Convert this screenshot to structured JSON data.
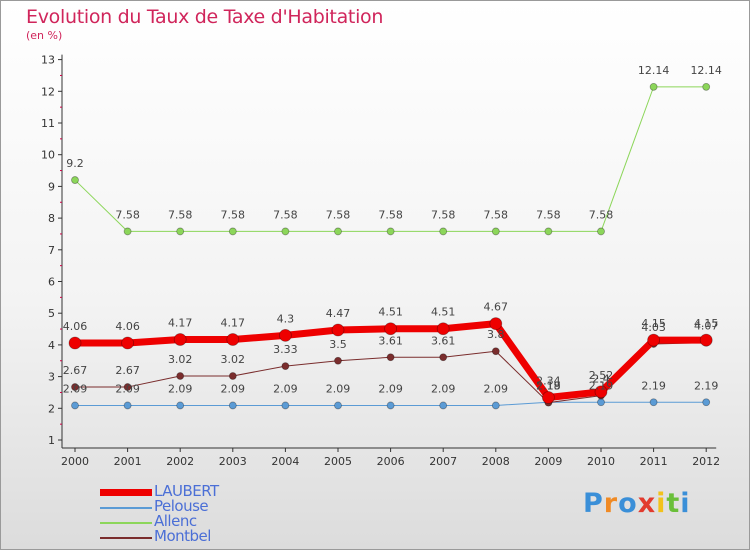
{
  "chart_data": {
    "type": "line",
    "title": "Evolution du Taux de Taxe d'Habitation",
    "ylabel": "(en %)",
    "x": [
      "2000",
      "2001",
      "2002",
      "2003",
      "2004",
      "2005",
      "2006",
      "2007",
      "2008",
      "2009",
      "2010",
      "2011",
      "2012"
    ],
    "ylim": [
      1,
      13
    ],
    "yticks": [
      1,
      2,
      3,
      4,
      5,
      6,
      7,
      8,
      9,
      10,
      11,
      12,
      13
    ],
    "grid": false,
    "legend_position": "bottom-left",
    "series": [
      {
        "name": "LAUBERT",
        "color": "#ee0000",
        "width": 7,
        "values": [
          4.06,
          4.06,
          4.17,
          4.17,
          4.3,
          4.47,
          4.51,
          4.51,
          4.67,
          2.34,
          2.52,
          4.15,
          4.15
        ],
        "labels": [
          "4.06",
          "4.06",
          "4.17",
          "4.17",
          "4.3",
          "4.47",
          "4.51",
          "4.51",
          "4.67",
          "2.34",
          "2.52",
          "4.15",
          "4.15"
        ]
      },
      {
        "name": "Pelouse",
        "color": "#5b9bd5",
        "width": 1,
        "values": [
          2.09,
          2.09,
          2.09,
          2.09,
          2.09,
          2.09,
          2.09,
          2.09,
          2.09,
          2.19,
          2.19,
          2.19,
          2.19
        ],
        "labels": [
          "2.09",
          "2.09",
          "2.09",
          "2.09",
          "2.09",
          "2.09",
          "2.09",
          "2.09",
          "2.09",
          "2.19",
          "2.19",
          "2.19",
          "2.19"
        ]
      },
      {
        "name": "Allenc",
        "color": "#8cd65a",
        "width": 1,
        "values": [
          9.2,
          7.58,
          7.58,
          7.58,
          7.58,
          7.58,
          7.58,
          7.58,
          7.58,
          7.58,
          7.58,
          12.14,
          12.14
        ],
        "labels": [
          "9.2",
          "7.58",
          "7.58",
          "7.58",
          "7.58",
          "7.58",
          "7.58",
          "7.58",
          "7.58",
          "7.58",
          "7.58",
          "12.14",
          "12.14"
        ]
      },
      {
        "name": "Montbel",
        "color": "#7a2d2d",
        "width": 1,
        "values": [
          2.67,
          2.67,
          3.02,
          3.02,
          3.33,
          3.5,
          3.61,
          3.61,
          3.8,
          2.18,
          2.4,
          4.03,
          4.07
        ],
        "labels": [
          "2.67",
          "2.67",
          "3.02",
          "3.02",
          "3.33",
          "3.5",
          "3.61",
          "3.61",
          "3.8",
          "2.18",
          "2.4",
          "4.03",
          "4.07"
        ]
      }
    ]
  },
  "logo": {
    "text": "Proxiti"
  }
}
